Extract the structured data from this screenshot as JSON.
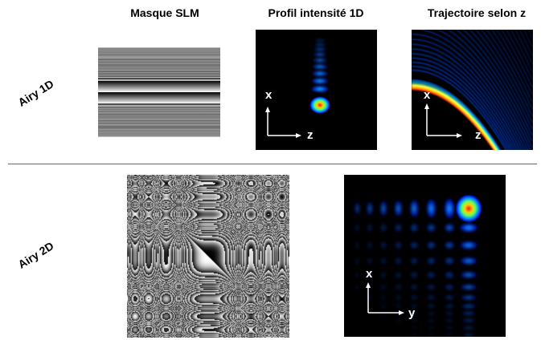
{
  "columns": {
    "slm_mask": "Masque SLM",
    "intensity_1d": "Profil intensité 1D",
    "trajectory_z": "Trajectoire selon z"
  },
  "rows": {
    "airy_1d": "Airy 1D",
    "airy_2d": "Airy 2D"
  },
  "axes": {
    "x": "x",
    "z": "z",
    "y": "y"
  },
  "colors": {
    "jet_hot": "#ff2000",
    "jet_dark": "#000080",
    "background": "#000000",
    "divider": "#555555"
  }
}
